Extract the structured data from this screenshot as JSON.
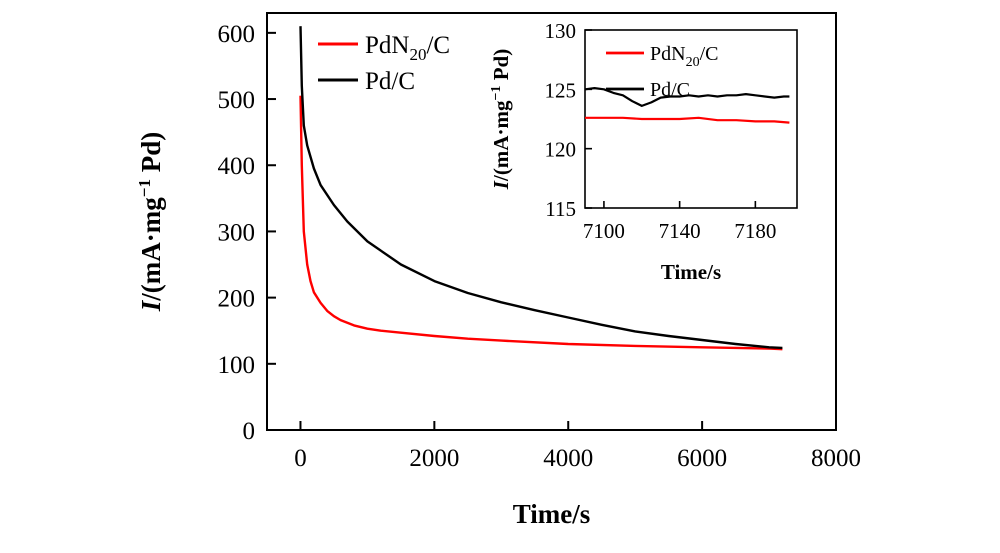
{
  "chart_data": [
    {
      "type": "line",
      "xlabel": "Time/s",
      "ylabel": {
        "prefix": "I",
        "text": "/(mA·mg",
        "sup": "−1",
        "suffix": " Pd)"
      },
      "xlim": [
        -500,
        8000
      ],
      "ylim": [
        0,
        630
      ],
      "xticks": [
        0,
        2000,
        4000,
        6000,
        8000
      ],
      "xtick_labels": [
        "0",
        "2000",
        "4000",
        "6000",
        "8000"
      ],
      "yticks": [
        0,
        100,
        200,
        300,
        400,
        500,
        600
      ],
      "ytick_labels": [
        "0",
        "100",
        "200",
        "300",
        "400",
        "500",
        "600"
      ],
      "legend_position": "top-left",
      "series": [
        {
          "name": "PdN20/C",
          "name_parts": [
            "PdN",
            "20",
            "/C"
          ],
          "color": "#ff0000",
          "x": [
            0,
            20,
            50,
            100,
            150,
            200,
            300,
            400,
            500,
            600,
            800,
            1000,
            1200,
            1500,
            2000,
            2500,
            3000,
            4000,
            5000,
            6000,
            7000,
            7200
          ],
          "y": [
            505,
            400,
            300,
            250,
            225,
            208,
            192,
            180,
            172,
            166,
            158,
            153,
            150,
            147,
            142,
            138,
            135,
            130,
            127,
            125,
            123,
            122
          ]
        },
        {
          "name": "Pd/C",
          "name_parts": [
            "Pd/C",
            "",
            ""
          ],
          "color": "#000000",
          "x": [
            0,
            20,
            50,
            100,
            200,
            300,
            500,
            700,
            1000,
            1500,
            2000,
            2500,
            3000,
            3500,
            4000,
            4500,
            5000,
            5500,
            6000,
            6500,
            7000,
            7200
          ],
          "y": [
            610,
            520,
            460,
            430,
            395,
            370,
            340,
            315,
            285,
            250,
            225,
            207,
            193,
            181,
            170,
            159,
            149,
            142,
            136,
            130,
            125,
            124
          ]
        }
      ]
    },
    {
      "type": "line",
      "xlabel": "Time/s",
      "ylabel": {
        "prefix": "I",
        "text": "/(mA·mg",
        "sup": "−1",
        "suffix": " Pd)"
      },
      "xlim": [
        7090,
        7202
      ],
      "ylim": [
        115,
        130
      ],
      "xticks": [
        7100,
        7140,
        7180
      ],
      "xtick_labels": [
        "7100",
        "7140",
        "7180"
      ],
      "yticks": [
        115,
        120,
        125,
        130
      ],
      "ytick_labels": [
        "115",
        "120",
        "125",
        "130"
      ],
      "legend_position": "top-left",
      "series": [
        {
          "name": "PdN20/C",
          "name_parts": [
            "PdN",
            "20",
            "/C"
          ],
          "color": "#ff0000",
          "x": [
            7090,
            7100,
            7110,
            7120,
            7130,
            7140,
            7150,
            7160,
            7170,
            7180,
            7190,
            7198
          ],
          "y": [
            122.6,
            122.6,
            122.6,
            122.5,
            122.5,
            122.5,
            122.6,
            122.4,
            122.4,
            122.3,
            122.3,
            122.2
          ]
        },
        {
          "name": "Pd/C",
          "name_parts": [
            "Pd/C",
            "",
            ""
          ],
          "color": "#000000",
          "x": [
            7090,
            7095,
            7100,
            7105,
            7110,
            7115,
            7120,
            7125,
            7130,
            7135,
            7140,
            7145,
            7150,
            7155,
            7160,
            7165,
            7170,
            7175,
            7180,
            7185,
            7190,
            7195,
            7198
          ],
          "y": [
            125.0,
            125.1,
            125.0,
            124.7,
            124.5,
            124.0,
            123.6,
            123.9,
            124.3,
            124.4,
            124.4,
            124.5,
            124.4,
            124.5,
            124.4,
            124.5,
            124.5,
            124.6,
            124.5,
            124.4,
            124.3,
            124.4,
            124.4
          ]
        }
      ]
    }
  ]
}
